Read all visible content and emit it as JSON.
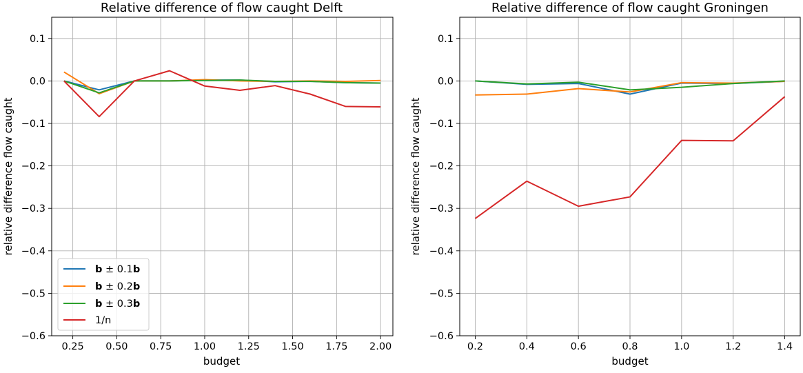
{
  "colors": {
    "series": [
      "#1f77b4",
      "#ff7f0e",
      "#2ca02c",
      "#d62728"
    ],
    "grid": "#b0b0b0",
    "legend_border": "#cccccc"
  },
  "legend": {
    "position": "lower left",
    "entries": [
      {
        "bold": "b",
        "op": " ± 0.1",
        "bold2": "b"
      },
      {
        "bold": "b",
        "op": " ± 0.2",
        "bold2": "b"
      },
      {
        "bold": "b",
        "op": " ± 0.3",
        "bold2": "b"
      },
      {
        "bold": "",
        "op": "1/n",
        "bold2": ""
      }
    ]
  },
  "chart_data": [
    {
      "type": "line",
      "title": "Relative difference of flow caught Delft",
      "xlabel": "budget",
      "ylabel": "relative difference flow caught",
      "xlim": [
        0.13,
        2.07
      ],
      "ylim": [
        -0.6,
        0.15
      ],
      "grid": true,
      "xticks": [
        0.25,
        0.5,
        0.75,
        1.0,
        1.25,
        1.5,
        1.75,
        2.0
      ],
      "xtick_labels": [
        "0.25",
        "0.50",
        "0.75",
        "1.00",
        "1.25",
        "1.50",
        "1.75",
        "2.00"
      ],
      "yticks": [
        0.1,
        0.0,
        -0.1,
        -0.2,
        -0.3,
        -0.4,
        -0.5,
        -0.6
      ],
      "ytick_labels": [
        "0.1",
        "0.0",
        "−0.1",
        "−0.2",
        "−0.3",
        "−0.4",
        "−0.5",
        "−0.6"
      ],
      "x": [
        0.2,
        0.4,
        0.6,
        0.8,
        1.0,
        1.2,
        1.4,
        1.6,
        1.8,
        2.0
      ],
      "series": [
        {
          "values": [
            0.0,
            -0.021,
            0.0,
            0.0,
            0.002,
            0.002,
            -0.002,
            -0.001,
            -0.004,
            -0.005
          ]
        },
        {
          "values": [
            0.021,
            -0.03,
            0.0,
            0.0,
            0.003,
            0.0,
            -0.001,
            0.0,
            -0.001,
            0.001
          ]
        },
        {
          "values": [
            0.0,
            -0.028,
            0.0,
            0.0,
            0.001,
            0.002,
            -0.001,
            -0.001,
            -0.004,
            -0.005
          ]
        },
        {
          "values": [
            0.0,
            -0.084,
            0.0,
            0.024,
            -0.012,
            -0.022,
            -0.011,
            -0.031,
            -0.06,
            -0.061
          ]
        }
      ]
    },
    {
      "type": "line",
      "title": "Relative difference of flow caught Groningen",
      "xlabel": "budget",
      "ylabel": "relative difference flow caught",
      "xlim": [
        0.14,
        1.46
      ],
      "ylim": [
        -0.6,
        0.15
      ],
      "grid": true,
      "xticks": [
        0.2,
        0.4,
        0.6,
        0.8,
        1.0,
        1.2,
        1.4
      ],
      "xtick_labels": [
        "0.2",
        "0.4",
        "0.6",
        "0.8",
        "1.0",
        "1.2",
        "1.4"
      ],
      "yticks": [
        0.1,
        0.0,
        -0.1,
        -0.2,
        -0.3,
        -0.4,
        -0.5,
        -0.6
      ],
      "ytick_labels": [
        "0.1",
        "0.0",
        "−0.1",
        "−0.2",
        "−0.3",
        "−0.4",
        "−0.5",
        "−0.6"
      ],
      "x": [
        0.2,
        0.4,
        0.6,
        0.8,
        1.0,
        1.2,
        1.4
      ],
      "series": [
        {
          "values": [
            0.0,
            -0.008,
            -0.006,
            -0.031,
            -0.005,
            -0.006,
            -0.001
          ]
        },
        {
          "values": [
            -0.033,
            -0.031,
            -0.018,
            -0.026,
            -0.004,
            -0.005,
            -0.001
          ]
        },
        {
          "values": [
            0.0,
            -0.007,
            -0.003,
            -0.021,
            -0.015,
            -0.006,
            0.0
          ]
        },
        {
          "values": [
            -0.324,
            -0.236,
            -0.295,
            -0.273,
            -0.14,
            -0.141,
            -0.037
          ]
        }
      ]
    }
  ]
}
